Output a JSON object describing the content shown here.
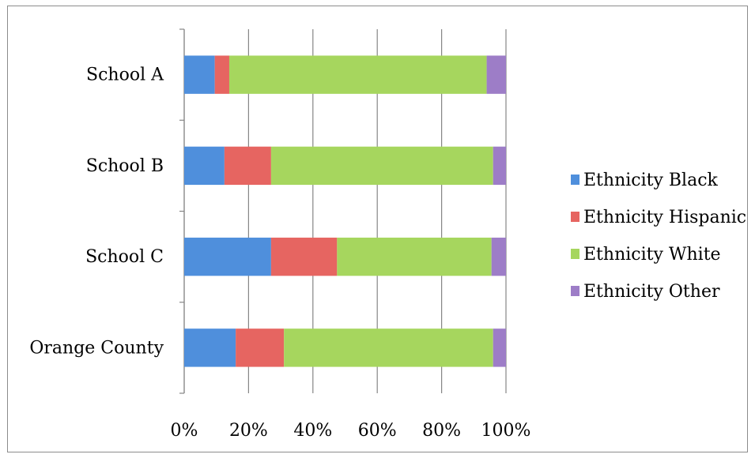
{
  "chart_data": {
    "type": "bar",
    "orientation": "horizontal",
    "stacked": "percent",
    "categories": [
      "School A",
      "School B",
      "School C",
      "Orange County"
    ],
    "series": [
      {
        "name": "Ethnicity Black",
        "color": "#4f8fdc",
        "values": [
          9.5,
          12.5,
          27,
          16
        ]
      },
      {
        "name": "Ethnicity Hispanic",
        "color": "#e66561",
        "values": [
          4.5,
          14.5,
          20.5,
          15
        ]
      },
      {
        "name": "Ethnicity White",
        "color": "#a6d65e",
        "values": [
          80,
          69,
          48,
          65
        ]
      },
      {
        "name": "Ethnicity Other",
        "color": "#9d7dc7",
        "values": [
          6,
          4,
          4.5,
          4
        ]
      }
    ],
    "xticks": [
      "0%",
      "20%",
      "40%",
      "60%",
      "80%",
      "100%"
    ],
    "xlim": [
      0,
      100
    ],
    "grid": "vertical",
    "legend_position": "right"
  }
}
